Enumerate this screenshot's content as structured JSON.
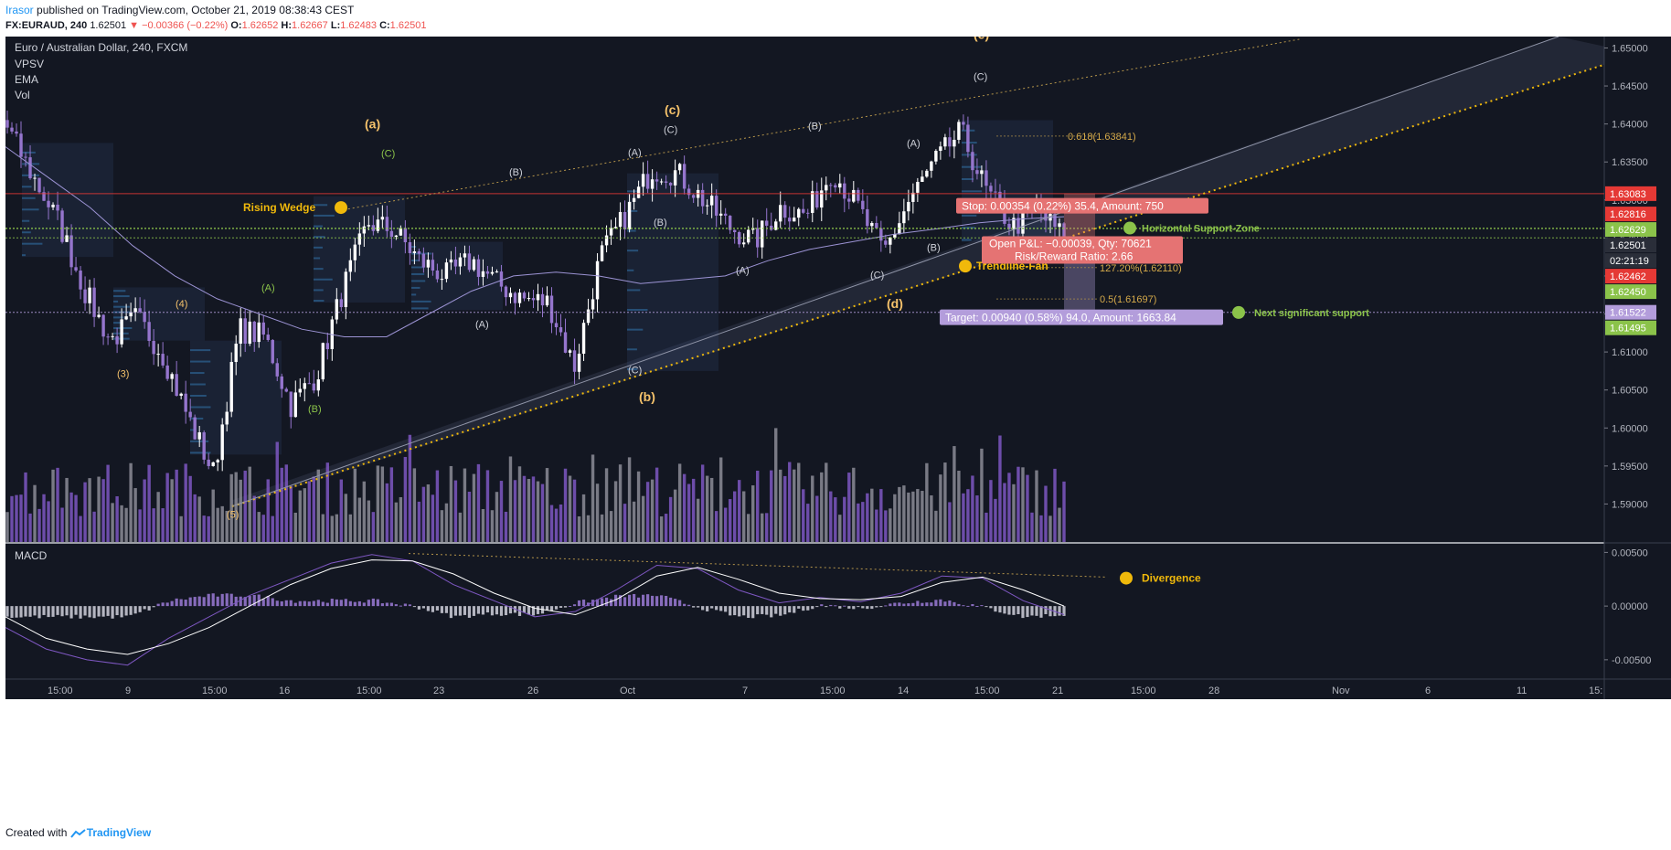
{
  "header": {
    "user": "Irasor",
    "published_text": " published on TradingView.com, October 21, 2019 08:38:43 CEST",
    "symbol_line": "FX:EURAUD, 240",
    "last": "1.62501",
    "change": "▼ −0.00366 (−0.22%)",
    "o_label": "O:",
    "o": "1.62652",
    "h_label": "H:",
    "h": "1.62667",
    "l_label": "L:",
    "l": "1.62483",
    "c_label": "C:",
    "c": "1.62501"
  },
  "legend": {
    "title": "Euro / Australian Dollar, 240, FXCM",
    "indicators": [
      "VPSV",
      "EMA",
      "Vol"
    ]
  },
  "footer": {
    "created_with": "Created with",
    "brand": "TradingView"
  },
  "colors": {
    "background": "#131722",
    "up_candle": "#ffffff",
    "down_candle": "#9575cd",
    "ema": "#9c93d4",
    "wedge": "#b5954a",
    "trendline": "#f0b90b",
    "resistance": "#e53935",
    "support": "#8bc34a",
    "vol_up": "#8c8c96",
    "vol_down": "#7e57c2",
    "macd_line": "#7e57c2",
    "signal_line": "#ffffff",
    "label_gold": "#f5c26b",
    "label_green": "#8bc34a",
    "stop_box": "#e57373",
    "target_box": "#b39ddb"
  },
  "chart_data": [
    {
      "type": "candlestick",
      "title": "Euro / Australian Dollar, 240, FXCM",
      "symbol": "FX:EURAUD",
      "ylim": [
        1.585,
        1.6515
      ],
      "y_ticks": [
        "1.65000",
        "1.64500",
        "1.64000",
        "1.63500",
        "1.63000",
        "1.62500",
        "1.62000",
        "1.61500",
        "1.61000",
        "1.60500",
        "1.60000",
        "1.59500",
        "1.59000"
      ],
      "x_ticks": [
        "15:00",
        "9",
        "15:00",
        "16",
        "15:00",
        "23",
        "26",
        "Oct",
        "7",
        "15:00",
        "14",
        "15:00",
        "21",
        "15:00",
        "28",
        "Nov",
        "6",
        "11",
        "15:"
      ],
      "price_path": [
        1.6395,
        1.633,
        1.627,
        1.618,
        1.6115,
        1.6145,
        1.61,
        1.6015,
        1.594,
        1.613,
        1.612,
        1.603,
        1.607,
        1.618,
        1.627,
        1.626,
        1.622,
        1.62,
        1.622,
        1.619,
        1.617,
        1.6165,
        1.608,
        1.6225,
        1.628,
        1.634,
        1.6335,
        1.63,
        1.6265,
        1.6245,
        1.629,
        1.628,
        1.634,
        1.629,
        1.623,
        1.63,
        1.635,
        1.639,
        1.631,
        1.6265,
        1.6285,
        1.625
      ],
      "ema_path": [
        1.637,
        1.633,
        1.629,
        1.624,
        1.62,
        1.617,
        1.615,
        1.613,
        1.612,
        1.612,
        1.615,
        1.618,
        1.62,
        1.6205,
        1.62,
        1.619,
        1.6195,
        1.62,
        1.622,
        1.6235,
        1.6245,
        1.6255,
        1.6262,
        1.627,
        1.6275,
        1.6278
      ],
      "price_levels": [
        {
          "name": "resistance",
          "value": 1.63083,
          "label": "1.63083",
          "color": "#e53935"
        },
        {
          "name": "support-zone-upper",
          "value": 1.62629,
          "label": "1.62629",
          "color": "#8bc34a"
        },
        {
          "name": "last-price",
          "value": 1.62501,
          "label": "1.62501",
          "color": "#8bc34a"
        },
        {
          "name": "next-support",
          "value": 1.61522,
          "label": "1.61522",
          "color": "#b39ddb"
        }
      ],
      "axis_badges": [
        {
          "label": "1.63083",
          "color": "#e53935"
        },
        {
          "label": "1.62816",
          "color": "#e53935"
        },
        {
          "label": "1.62629",
          "color": "#8bc34a"
        },
        {
          "label": "1.62501",
          "color": "#2a2e39"
        },
        {
          "label": "02:21:19",
          "color": "#2a2e39"
        },
        {
          "label": "1.62462",
          "color": "#e53935"
        },
        {
          "label": "1.62450",
          "color": "#8bc34a"
        },
        {
          "label": "1.61522",
          "color": "#b39ddb"
        },
        {
          "label": "1.61495",
          "color": "#8bc34a"
        }
      ],
      "fib_levels": [
        {
          "label": "0.618(1.63841)",
          "value": 1.63841
        },
        {
          "label": "127.20%(1.62110)",
          "value": 1.6211
        },
        {
          "label": "0.5(1.61697)",
          "value": 1.61697
        },
        {
          "label": "161.80%(1.61505)",
          "value": 1.61505
        }
      ],
      "annotations": {
        "wave_labels": [
          "(a)",
          "(b)",
          "(c)",
          "(d)",
          "(e)",
          "(1)",
          "(2)",
          "(3)",
          "(4)",
          "(5)",
          "(A)",
          "(B)",
          "(C)"
        ],
        "rising_wedge": "Rising Wedge",
        "trendline_fan": "Trendline-Fan",
        "horizontal_support": "Horizontal Support-Zone",
        "next_support": "Next significant support",
        "stop": "Stop: 0.00354 (0.22%) 35.4, Amount: 750",
        "open_pl": "Open P&L: −0.00039, Qty: 70621",
        "risk_reward": "Risk/Reward Ratio: 2.66",
        "target": "Target: 0.00940 (0.58%) 94.0, Amount: 1663.84"
      }
    },
    {
      "type": "macd",
      "title": "MACD",
      "ylim": [
        -0.0068,
        0.0058
      ],
      "y_ticks": [
        "0.00500",
        "0.00000",
        "-0.00500"
      ],
      "macd_path": [
        -0.002,
        -0.004,
        -0.005,
        -0.0055,
        -0.003,
        -0.001,
        0.001,
        0.0025,
        0.004,
        0.0048,
        0.0042,
        0.002,
        0.0005,
        -0.001,
        -0.0005,
        0.0015,
        0.0038,
        0.0035,
        0.0015,
        0.0003,
        0.0008,
        0.0004,
        0.0012,
        0.0028,
        0.0026,
        0.0005,
        -0.0008
      ],
      "signal_path": [
        -0.001,
        -0.003,
        -0.004,
        -0.0045,
        -0.0035,
        -0.002,
        0.0,
        0.002,
        0.0035,
        0.0043,
        0.0042,
        0.003,
        0.0012,
        -0.0002,
        -0.0008,
        0.0006,
        0.0028,
        0.0036,
        0.0025,
        0.0012,
        0.0007,
        0.0006,
        0.0009,
        0.0022,
        0.0027,
        0.0015,
        0.0
      ]
    }
  ],
  "macd_annotations": {
    "divergence": "Divergence"
  }
}
